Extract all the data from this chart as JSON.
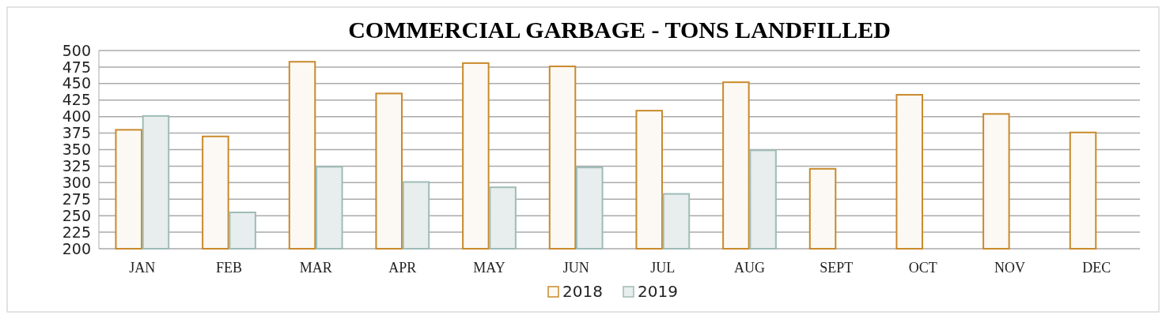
{
  "chart_data": {
    "type": "bar",
    "title": "COMMERCIAL GARBAGE - TONS LANDFILLED",
    "categories": [
      "JAN",
      "FEB",
      "MAR",
      "APR",
      "MAY",
      "JUN",
      "JUL",
      "AUG",
      "SEPT",
      "OCT",
      "NOV",
      "DEC"
    ],
    "series": [
      {
        "name": "2018",
        "color": "#c98a2b",
        "values": [
          380,
          370,
          483,
          435,
          481,
          476,
          409,
          452,
          321,
          433,
          404,
          376
        ]
      },
      {
        "name": "2019",
        "color": "#9fbcb7",
        "values": [
          401,
          255,
          324,
          301,
          293,
          323,
          283,
          349,
          null,
          null,
          null,
          null
        ]
      }
    ],
    "ylim": [
      200,
      500
    ],
    "yticks": [
      200,
      225,
      250,
      275,
      300,
      325,
      350,
      375,
      400,
      425,
      450,
      475,
      500
    ],
    "grid": "y",
    "legend": "bottom"
  }
}
